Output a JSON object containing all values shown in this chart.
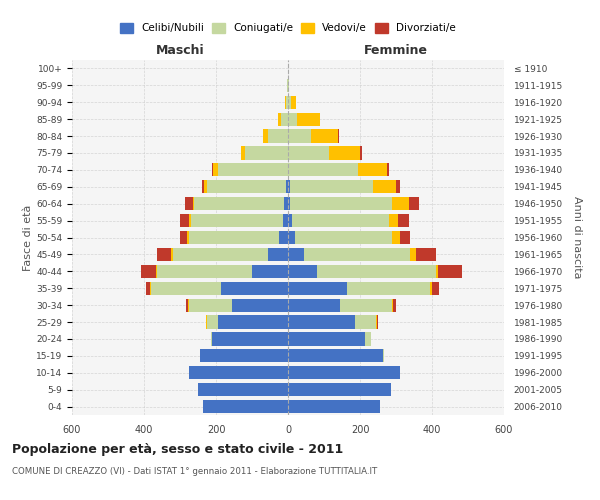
{
  "age_groups": [
    "0-4",
    "5-9",
    "10-14",
    "15-19",
    "20-24",
    "25-29",
    "30-34",
    "35-39",
    "40-44",
    "45-49",
    "50-54",
    "55-59",
    "60-64",
    "65-69",
    "70-74",
    "75-79",
    "80-84",
    "85-89",
    "90-94",
    "95-99",
    "100+"
  ],
  "birth_years": [
    "2006-2010",
    "2001-2005",
    "1996-2000",
    "1991-1995",
    "1986-1990",
    "1981-1985",
    "1976-1980",
    "1971-1975",
    "1966-1970",
    "1961-1965",
    "1956-1960",
    "1951-1955",
    "1946-1950",
    "1941-1945",
    "1936-1940",
    "1931-1935",
    "1926-1930",
    "1921-1925",
    "1916-1920",
    "1911-1915",
    "≤ 1910"
  ],
  "males_celibe": [
    235,
    250,
    275,
    245,
    210,
    195,
    155,
    185,
    100,
    55,
    25,
    15,
    10,
    5,
    0,
    0,
    0,
    0,
    0,
    0,
    0
  ],
  "males_coniugato": [
    0,
    0,
    0,
    0,
    5,
    30,
    120,
    195,
    265,
    265,
    250,
    255,
    250,
    220,
    195,
    120,
    55,
    20,
    5,
    2,
    0
  ],
  "males_vedovo": [
    0,
    0,
    0,
    0,
    0,
    2,
    2,
    2,
    3,
    5,
    5,
    5,
    5,
    8,
    12,
    10,
    15,
    8,
    2,
    0,
    0
  ],
  "males_divorziato": [
    0,
    0,
    0,
    0,
    0,
    2,
    5,
    12,
    40,
    40,
    20,
    25,
    20,
    5,
    5,
    0,
    0,
    0,
    0,
    0,
    0
  ],
  "fem_nubile": [
    255,
    285,
    310,
    265,
    215,
    185,
    145,
    165,
    80,
    45,
    20,
    10,
    5,
    5,
    0,
    0,
    0,
    0,
    0,
    0,
    0
  ],
  "fem_coniugata": [
    0,
    0,
    0,
    2,
    15,
    60,
    145,
    230,
    330,
    295,
    270,
    270,
    285,
    230,
    195,
    115,
    65,
    25,
    8,
    2,
    0
  ],
  "fem_vedova": [
    0,
    0,
    0,
    0,
    0,
    2,
    3,
    5,
    8,
    15,
    20,
    25,
    45,
    65,
    80,
    85,
    75,
    65,
    15,
    2,
    0
  ],
  "fem_divorziata": [
    0,
    0,
    0,
    0,
    0,
    3,
    8,
    20,
    65,
    55,
    30,
    30,
    30,
    10,
    5,
    5,
    2,
    0,
    0,
    0,
    0
  ],
  "color_celibe": "#4472c4",
  "color_coniugato": "#c5d8a0",
  "color_vedovo": "#ffc000",
  "color_divorziato": "#c0392b",
  "title": "Popolazione per età, sesso e stato civile - 2011",
  "subtitle": "COMUNE DI CREAZZO (VI) - Dati ISTAT 1° gennaio 2011 - Elaborazione TUTTITALIA.IT",
  "label_maschi": "Maschi",
  "label_femmine": "Femmine",
  "ylabel_left": "Fasce di età",
  "ylabel_right": "Anni di nascita",
  "legend_labels": [
    "Celibi/Nubili",
    "Coniugati/e",
    "Vedovi/e",
    "Divorziati/e"
  ],
  "xlim": 600,
  "bg_plot": "#f5f5f5",
  "bg_fig": "#ffffff",
  "grid_color": "#cccccc"
}
